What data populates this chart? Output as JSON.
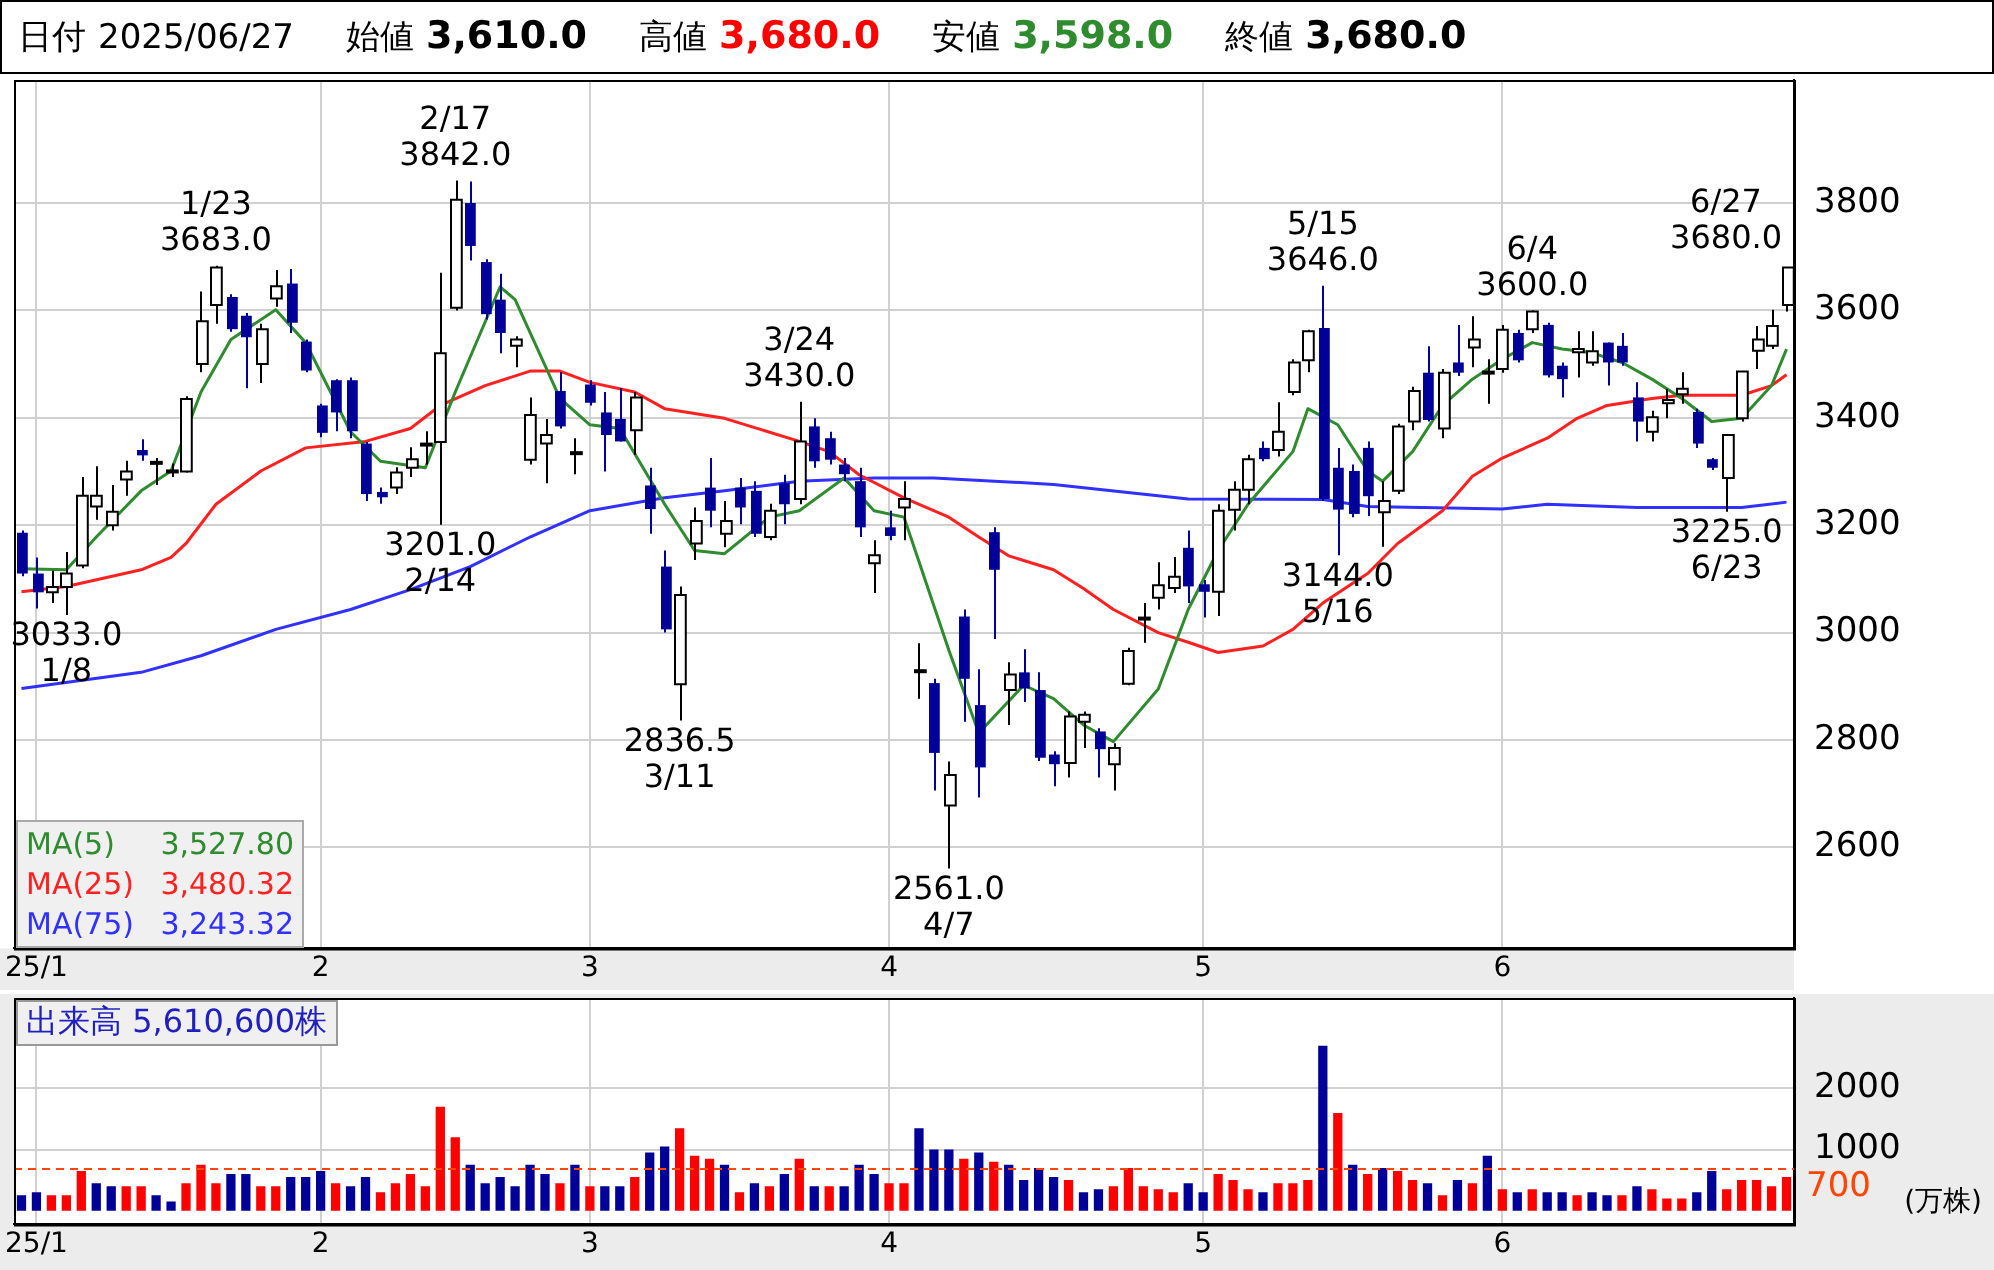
{
  "chart_data": [
    {
      "type": "candlestick",
      "title": "日付 2025/06/27",
      "annotations": [
        "始値 3,610.0",
        "高値 3,680.0",
        "安値 3,598.0",
        "終値 3,680.0",
        {
          "text": "1/23\n3683.0",
          "y": 3683
        },
        {
          "text": "2/17\n3842.0",
          "y": 3842
        },
        {
          "text": "3201.0\n2/14",
          "y": 3201
        },
        {
          "text": "3033.0\n1/8",
          "y": 3033
        },
        {
          "text": "2836.5\n3/11",
          "y": 2836.5
        },
        {
          "text": "3/24\n3430.0",
          "y": 3430
        },
        {
          "text": "2561.0\n4/7",
          "y": 2561
        },
        {
          "text": "5/15\n3646.0",
          "y": 3646
        },
        {
          "text": "3144.0\n5/16",
          "y": 3144
        },
        {
          "text": "6/4\n3600.0",
          "y": 3600
        },
        {
          "text": "3225.0\n6/23",
          "y": 3225
        },
        "6/27\n3680.0"
      ],
      "categories": [
        null,
        "25/1",
        null,
        null,
        null,
        null,
        null,
        null,
        null,
        null,
        null,
        null,
        null,
        null,
        null,
        null,
        null,
        null,
        null,
        null,
        "2",
        null,
        null,
        null,
        null,
        null,
        null,
        null,
        null,
        null,
        null,
        null,
        null,
        null,
        null,
        null,
        null,
        null,
        "3",
        null,
        null,
        null,
        null,
        null,
        null,
        null,
        null,
        null,
        null,
        null,
        null,
        null,
        null,
        null,
        null,
        null,
        null,
        null,
        "4",
        null,
        null,
        null,
        null,
        null,
        null,
        null,
        null,
        null,
        null,
        null,
        null,
        null,
        null,
        null,
        null,
        null,
        null,
        null,
        null,
        "5",
        null,
        null,
        null,
        null,
        null,
        null,
        null,
        null,
        null,
        null,
        null,
        null,
        null,
        null,
        null,
        null,
        null,
        null,
        null,
        "6",
        null,
        null,
        null,
        null,
        null,
        null,
        null,
        null,
        null,
        null,
        null,
        null,
        null,
        null,
        null,
        null,
        null,
        null,
        null
      ],
      "ohlc": [
        [
          3186,
          3190,
          3105,
          3110
        ],
        [
          3110,
          3140,
          3045,
          3075
        ],
        [
          3075,
          3115,
          3055,
          3085
        ],
        [
          3085,
          3150,
          3033,
          3110
        ],
        [
          3125,
          3290,
          3120,
          3255
        ],
        [
          3235,
          3310,
          3210,
          3255
        ],
        [
          3200,
          3275,
          3190,
          3225
        ],
        [
          3285,
          3320,
          3255,
          3300
        ],
        [
          3340,
          3360,
          3320,
          3330
        ],
        [
          3315,
          3325,
          3275,
          3318
        ],
        [
          3300,
          3315,
          3290,
          3302
        ],
        [
          3300,
          3440,
          3298,
          3435
        ],
        [
          3500,
          3635,
          3485,
          3580
        ],
        [
          3610,
          3683,
          3575,
          3680
        ],
        [
          3625,
          3630,
          3560,
          3565
        ],
        [
          3590,
          3595,
          3455,
          3550
        ],
        [
          3500,
          3575,
          3465,
          3565
        ],
        [
          3622,
          3675,
          3607,
          3645
        ],
        [
          3650,
          3677,
          3558,
          3577
        ],
        [
          3542,
          3546,
          3485,
          3488
        ],
        [
          3423,
          3426,
          3364,
          3372
        ],
        [
          3470,
          3472,
          3375,
          3410
        ],
        [
          3470,
          3475,
          3362,
          3375
        ],
        [
          3352,
          3355,
          3245,
          3258
        ],
        [
          3262,
          3270,
          3240,
          3252
        ],
        [
          3270,
          3308,
          3258,
          3298
        ],
        [
          3307,
          3345,
          3290,
          3323
        ],
        [
          3350,
          3375,
          3313,
          3352
        ],
        [
          3355,
          3670,
          3201,
          3520
        ],
        [
          3605,
          3842,
          3600,
          3806
        ],
        [
          3800,
          3840,
          3693,
          3720
        ],
        [
          3690,
          3695,
          3583,
          3593
        ],
        [
          3620,
          3668,
          3520,
          3558
        ],
        [
          3534,
          3552,
          3494,
          3546
        ],
        [
          3322,
          3438,
          3313,
          3405
        ],
        [
          3352,
          3398,
          3278,
          3368
        ],
        [
          3450,
          3485,
          3380,
          3384
        ],
        [
          3335,
          3362,
          3295,
          3336
        ],
        [
          3462,
          3470,
          3423,
          3428
        ],
        [
          3410,
          3448,
          3300,
          3368
        ],
        [
          3398,
          3455,
          3356,
          3356
        ],
        [
          3377,
          3448,
          3331,
          3438
        ],
        [
          3274,
          3307,
          3184,
          3230
        ],
        [
          3123,
          3153,
          3000,
          3006
        ],
        [
          2904,
          3086,
          2836.5,
          3070
        ],
        [
          3166,
          3233,
          3135,
          3208
        ],
        [
          3270,
          3325,
          3196,
          3227
        ],
        [
          3184,
          3245,
          3159,
          3208
        ],
        [
          3270,
          3288,
          3202,
          3233
        ],
        [
          3264,
          3282,
          3178,
          3184
        ],
        [
          3178,
          3240,
          3172,
          3227
        ],
        [
          3278,
          3294,
          3202,
          3239
        ],
        [
          3249,
          3430,
          3239,
          3356
        ],
        [
          3384,
          3399,
          3307,
          3319
        ],
        [
          3362,
          3374,
          3313,
          3322
        ],
        [
          3313,
          3325,
          3282,
          3295
        ],
        [
          3282,
          3307,
          3178,
          3196
        ],
        [
          3129,
          3172,
          3074,
          3144
        ],
        [
          3196,
          3227,
          3172,
          3180
        ],
        [
          3233,
          3282,
          3172,
          3249
        ],
        [
          2927,
          2980,
          2877,
          2930
        ],
        [
          2906,
          2914,
          2706,
          2776
        ],
        [
          2678,
          2760,
          2561,
          2735
        ],
        [
          3030,
          3043,
          2834,
          2914
        ],
        [
          2865,
          2932,
          2693,
          2749
        ],
        [
          3187,
          3196,
          2988,
          3117
        ],
        [
          2893,
          2945,
          2828,
          2922
        ],
        [
          2926,
          2969,
          2871,
          2896
        ],
        [
          2893,
          2926,
          2761,
          2767
        ],
        [
          2773,
          2779,
          2714,
          2755
        ],
        [
          2757,
          2853,
          2730,
          2844
        ],
        [
          2834,
          2853,
          2785,
          2847
        ],
        [
          2816,
          2822,
          2730,
          2783
        ],
        [
          2755,
          2794,
          2706,
          2785
        ],
        [
          2905,
          2972,
          2902,
          2966
        ],
        [
          3026,
          3055,
          2981,
          3028
        ],
        [
          3065,
          3131,
          3043,
          3088
        ],
        [
          3083,
          3141,
          3074,
          3104
        ],
        [
          3158,
          3190,
          3055,
          3086
        ],
        [
          3090,
          3098,
          3028,
          3076
        ],
        [
          3076,
          3239,
          3031,
          3227
        ],
        [
          3229,
          3282,
          3190,
          3266
        ],
        [
          3266,
          3331,
          3239,
          3323
        ],
        [
          3344,
          3356,
          3319,
          3323
        ],
        [
          3340,
          3429,
          3328,
          3374
        ],
        [
          3448,
          3509,
          3442,
          3503
        ],
        [
          3507,
          3564,
          3485,
          3561
        ],
        [
          3567,
          3646,
          3245,
          3249
        ],
        [
          3307,
          3344,
          3144,
          3229
        ],
        [
          3301,
          3313,
          3215,
          3221
        ],
        [
          3344,
          3356,
          3217,
          3254
        ],
        [
          3224,
          3282,
          3160,
          3245
        ],
        [
          3264,
          3389,
          3258,
          3384
        ],
        [
          3393,
          3458,
          3377,
          3450
        ],
        [
          3484,
          3533,
          3393,
          3396
        ],
        [
          3380,
          3491,
          3362,
          3484
        ],
        [
          3503,
          3573,
          3478,
          3484
        ],
        [
          3531,
          3589,
          3494,
          3546
        ],
        [
          3484,
          3509,
          3426,
          3486
        ],
        [
          3491,
          3573,
          3484,
          3564
        ],
        [
          3558,
          3564,
          3503,
          3507
        ],
        [
          3565,
          3600,
          3558,
          3598
        ],
        [
          3573,
          3577,
          3475,
          3479
        ],
        [
          3497,
          3503,
          3438,
          3472
        ],
        [
          3522,
          3561,
          3475,
          3528
        ],
        [
          3503,
          3561,
          3497,
          3524
        ],
        [
          3540,
          3540,
          3460,
          3503
        ],
        [
          3534,
          3558,
          3497,
          3503
        ],
        [
          3438,
          3466,
          3356,
          3393
        ],
        [
          3374,
          3413,
          3356,
          3401
        ],
        [
          3427,
          3454,
          3399,
          3433
        ],
        [
          3444,
          3485,
          3426,
          3454
        ],
        [
          3411,
          3417,
          3344,
          3352
        ],
        [
          3323,
          3325,
          3303,
          3307
        ],
        [
          3288,
          3368,
          3225,
          3368
        ],
        [
          3399,
          3487,
          3393,
          3486
        ],
        [
          3525,
          3571,
          3491,
          3546
        ],
        [
          3534,
          3601,
          3528,
          3571
        ],
        [
          3610,
          3680,
          3598,
          3680
        ]
      ],
      "series": [
        {
          "type": "line",
          "name": "MA(5) 3,527.80",
          "color": "#2e8b2e",
          "values": [
            3119,
            null,
            null,
            3117,
            null,
            3178,
            null,
            null,
            3264,
            null,
            3301,
            null,
            3448,
            null,
            3546,
            null,
            null,
            3601,
            null,
            3540,
            null,
            null,
            3374,
            null,
            3319,
            null,
            null,
            3307,
            null,
            3448,
            null,
            null,
            3644,
            3620,
            null,
            null,
            3436,
            null,
            3387,
            null,
            3380,
            null,
            null,
            3239,
            null,
            3153,
            null,
            3147,
            null,
            null,
            3215,
            null,
            3227,
            null,
            null,
            3288,
            null,
            3227,
            null,
            3215,
            null,
            null,
            2967,
            null,
            2813,
            null,
            null,
            2902,
            null,
            2877,
            null,
            2828,
            null,
            2797,
            null,
            null,
            2895,
            null,
            3043,
            null,
            3153,
            null,
            3239,
            null,
            null,
            3337,
            3417,
            null,
            3387,
            null,
            3301,
            3282,
            null,
            3337,
            null,
            3423,
            null,
            3472,
            null,
            3509,
            null,
            3540,
            null,
            3528,
            null,
            3521,
            null,
            3503,
            null,
            3472,
            null,
            3436,
            null,
            3393,
            null,
            3399,
            null,
            3460,
            3528
          ]
        },
        {
          "type": "line",
          "name": "MA(25) 3,480.32",
          "color": "#ff2020",
          "values": [
            3076,
            null,
            null,
            3086,
            null,
            null,
            null,
            null,
            3117,
            null,
            3140,
            3166,
            null,
            3239,
            null,
            null,
            3301,
            null,
            null,
            3344,
            null,
            null,
            null,
            3356,
            null,
            null,
            3380,
            null,
            3423,
            null,
            null,
            3460,
            null,
            null,
            3487,
            null,
            3487,
            null,
            3466,
            null,
            null,
            3448,
            null,
            3417,
            null,
            null,
            null,
            3399,
            null,
            null,
            null,
            null,
            3356,
            null,
            3337,
            null,
            3294,
            null,
            null,
            3251,
            null,
            null,
            3215,
            null,
            3178,
            null,
            3143,
            null,
            null,
            3117,
            null,
            3082,
            null,
            3043,
            null,
            null,
            3000,
            null,
            2982,
            null,
            2963,
            null,
            null,
            2975,
            null,
            3006,
            null,
            3055,
            null,
            3092,
            3110,
            null,
            3166,
            null,
            null,
            3227,
            null,
            3291,
            null,
            3325,
            null,
            null,
            3362,
            null,
            3399,
            null,
            3423,
            null,
            null,
            3436,
            null,
            3442,
            null,
            3442,
            null,
            3442,
            null,
            3460,
            3480
          ]
        },
        {
          "type": "line",
          "name": "MA(75) 3,243.32",
          "color": "#3030ff",
          "values": [
            2896,
            null,
            null,
            null,
            null,
            null,
            null,
            null,
            2926,
            null,
            null,
            null,
            2957,
            null,
            null,
            null,
            null,
            3006,
            null,
            null,
            null,
            null,
            3043,
            null,
            null,
            null,
            3080,
            null,
            null,
            null,
            3123,
            null,
            null,
            null,
            3178,
            null,
            null,
            null,
            3227,
            null,
            null,
            null,
            null,
            3251,
            null,
            null,
            null,
            3264,
            null,
            null,
            null,
            null,
            3282,
            null,
            null,
            null,
            null,
            3288,
            null,
            null,
            null,
            3288,
            null,
            null,
            null,
            null,
            null,
            null,
            null,
            3276,
            null,
            null,
            null,
            null,
            null,
            null,
            null,
            null,
            3249,
            null,
            null,
            null,
            null,
            null,
            null,
            null,
            null,
            3248,
            null,
            null,
            3235,
            null,
            null,
            null,
            null,
            null,
            null,
            null,
            null,
            3230,
            null,
            null,
            3239,
            null,
            null,
            null,
            null,
            null,
            3233,
            null,
            null,
            null,
            null,
            null,
            null,
            3233,
            null,
            null,
            3243
          ]
        }
      ],
      "ylim": [
        2412,
        4029
      ],
      "yticks": [
        2600,
        2800,
        3000,
        3200,
        3400,
        3600,
        3800
      ],
      "grid": true,
      "legend": "bottom left",
      "marker": "none"
    },
    {
      "type": "bar",
      "title": "出来高 5,610,600株",
      "ylabel": "(万株)",
      "categories": [
        null,
        "25/1",
        null,
        null,
        null,
        null,
        null,
        null,
        null,
        null,
        null,
        null,
        null,
        null,
        null,
        null,
        null,
        null,
        null,
        null,
        "2",
        null,
        null,
        null,
        null,
        null,
        null,
        null,
        null,
        null,
        null,
        null,
        null,
        null,
        null,
        null,
        null,
        null,
        "3",
        null,
        null,
        null,
        null,
        null,
        null,
        null,
        null,
        null,
        null,
        null,
        null,
        null,
        null,
        null,
        null,
        null,
        null,
        null,
        "4",
        null,
        null,
        null,
        null,
        null,
        null,
        null,
        null,
        null,
        null,
        null,
        null,
        null,
        null,
        null,
        null,
        null,
        null,
        null,
        null,
        "5",
        null,
        null,
        null,
        null,
        null,
        null,
        null,
        null,
        null,
        null,
        null,
        null,
        null,
        null,
        null,
        null,
        null,
        null,
        null,
        "6",
        null,
        null,
        null,
        null,
        null,
        null,
        null,
        null,
        null,
        null,
        null,
        null,
        null,
        null,
        null,
        null,
        null,
        null,
        null
      ],
      "values": [
        250,
        300,
        250,
        250,
        650,
        450,
        400,
        400,
        400,
        250,
        150,
        450,
        750,
        450,
        600,
        600,
        400,
        400,
        550,
        550,
        650,
        450,
        400,
        550,
        300,
        450,
        600,
        400,
        1700,
        1200,
        750,
        450,
        550,
        400,
        750,
        600,
        450,
        750,
        400,
        400,
        400,
        550,
        950,
        1050,
        1350,
        900,
        850,
        750,
        300,
        450,
        400,
        600,
        850,
        400,
        400,
        400,
        750,
        600,
        450,
        450,
        1350,
        1000,
        1000,
        850,
        950,
        800,
        750,
        500,
        700,
        550,
        500,
        300,
        350,
        400,
        700,
        400,
        350,
        300,
        450,
        300,
        600,
        500,
        350,
        300,
        450,
        450,
        500,
        2700,
        1600,
        750,
        600,
        700,
        650,
        500,
        450,
        250,
        500,
        450,
        900,
        350,
        300,
        350,
        300,
        300,
        250,
        300,
        250,
        250,
        400,
        350,
        200,
        200,
        300,
        650,
        350,
        500,
        500,
        400,
        550
      ],
      "colors": [
        "#000099",
        "#000099",
        "#ff0000",
        "#ff0000",
        "#ff0000",
        "#000099",
        "#000099",
        "#ff0000",
        "#ff0000",
        "#000099",
        "#000099",
        "#ff0000",
        "#ff0000",
        "#ff0000",
        "#000099",
        "#000099",
        "#ff0000",
        "#ff0000",
        "#000099",
        "#000099",
        "#000099",
        "#ff0000",
        "#000099",
        "#000099",
        "#ff0000",
        "#ff0000",
        "#ff0000",
        "#ff0000",
        "#ff0000",
        "#ff0000",
        "#000099",
        "#000099",
        "#000099",
        "#000099",
        "#000099",
        "#000099",
        "#ff0000",
        "#000099",
        "#ff0000",
        "#000099",
        "#000099",
        "#ff0000",
        "#000099",
        "#000099",
        "#ff0000",
        "#ff0000",
        "#ff0000",
        "#000099",
        "#ff0000",
        "#000099",
        "#ff0000",
        "#000099",
        "#ff0000",
        "#000099",
        "#ff0000",
        "#000099",
        "#000099",
        "#000099",
        "#ff0000",
        "#ff0000",
        "#000099",
        "#000099",
        "#000099",
        "#ff0000",
        "#000099",
        "#ff0000",
        "#000099",
        "#000099",
        "#000099",
        "#000099",
        "#ff0000",
        "#000099",
        "#000099",
        "#ff0000",
        "#ff0000",
        "#ff0000",
        "#ff0000",
        "#ff0000",
        "#000099",
        "#000099",
        "#ff0000",
        "#ff0000",
        "#ff0000",
        "#000099",
        "#ff0000",
        "#ff0000",
        "#ff0000",
        "#000099",
        "#ff0000",
        "#000099",
        "#ff0000",
        "#000099",
        "#ff0000",
        "#ff0000",
        "#000099",
        "#ff0000",
        "#000099",
        "#ff0000",
        "#000099",
        "#ff0000",
        "#000099",
        "#ff0000",
        "#000099",
        "#000099",
        "#ff0000",
        "#000099",
        "#000099",
        "#ff0000",
        "#000099",
        "#ff0000",
        "#ff0000",
        "#ff0000",
        "#000099",
        "#000099",
        "#ff0000",
        "#ff0000",
        "#ff0000",
        "#ff0000",
        "#ff0000"
      ],
      "ylim": [
        -225,
        3480
      ],
      "yticks": [
        1000,
        2000
      ],
      "ref_lines": [
        {
          "axis": "y",
          "value": 700,
          "label": "700",
          "color": "#ff4500",
          "line_style": "dashed"
        }
      ],
      "grid": true
    }
  ]
}
